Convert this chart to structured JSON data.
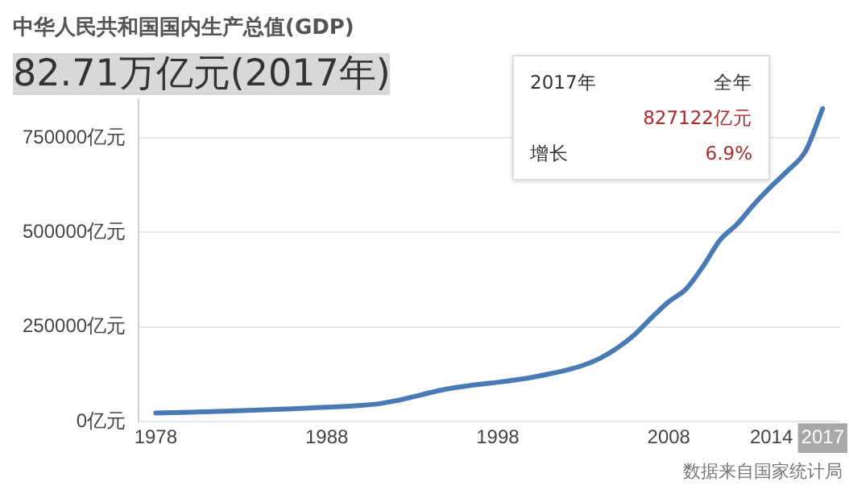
{
  "chart_data": {
    "type": "line",
    "title": "中华人民共和国国内生产总值(GDP)",
    "subtitle": "82.71万亿元(2017年)",
    "x": [
      1978,
      1980,
      1983,
      1986,
      1988,
      1990,
      1991,
      1992,
      1993,
      1994,
      1995,
      1996,
      1997,
      1998,
      1999,
      2000,
      2001,
      2002,
      2003,
      2004,
      2005,
      2006,
      2007,
      2008,
      2009,
      2010,
      2011,
      2012,
      2013,
      2014,
      2015,
      2016,
      2017
    ],
    "series": [
      {
        "color": "#4a7ab5",
        "values": [
          23000,
          25000,
          29000,
          34000,
          38000,
          43000,
          47000,
          55000,
          65000,
          76000,
          86000,
          93000,
          99000,
          104000,
          110000,
          117000,
          126000,
          136000,
          149000,
          168000,
          195000,
          230000,
          275000,
          317000,
          350000,
          410000,
          480000,
          522000,
          575000,
          622000,
          665000,
          715000,
          827122
        ]
      }
    ],
    "xlim": [
      1977,
      2018
    ],
    "xticks": [
      1978,
      1988,
      1998,
      2008,
      2014,
      2017
    ],
    "ylim": [
      0,
      850000
    ],
    "yticks": [
      {
        "value": 0,
        "label": "0亿元"
      },
      {
        "value": 250000,
        "label": "250000亿元"
      },
      {
        "value": 500000,
        "label": "500000亿元"
      },
      {
        "value": 750000,
        "label": "750000亿元"
      }
    ],
    "grid": "y",
    "legend": false,
    "marker": "none",
    "line_style": "solid",
    "annotations": [
      "2017年",
      "全年",
      "827122亿元",
      "增长",
      "6.9%",
      "数据来自国家统计局"
    ]
  }
}
